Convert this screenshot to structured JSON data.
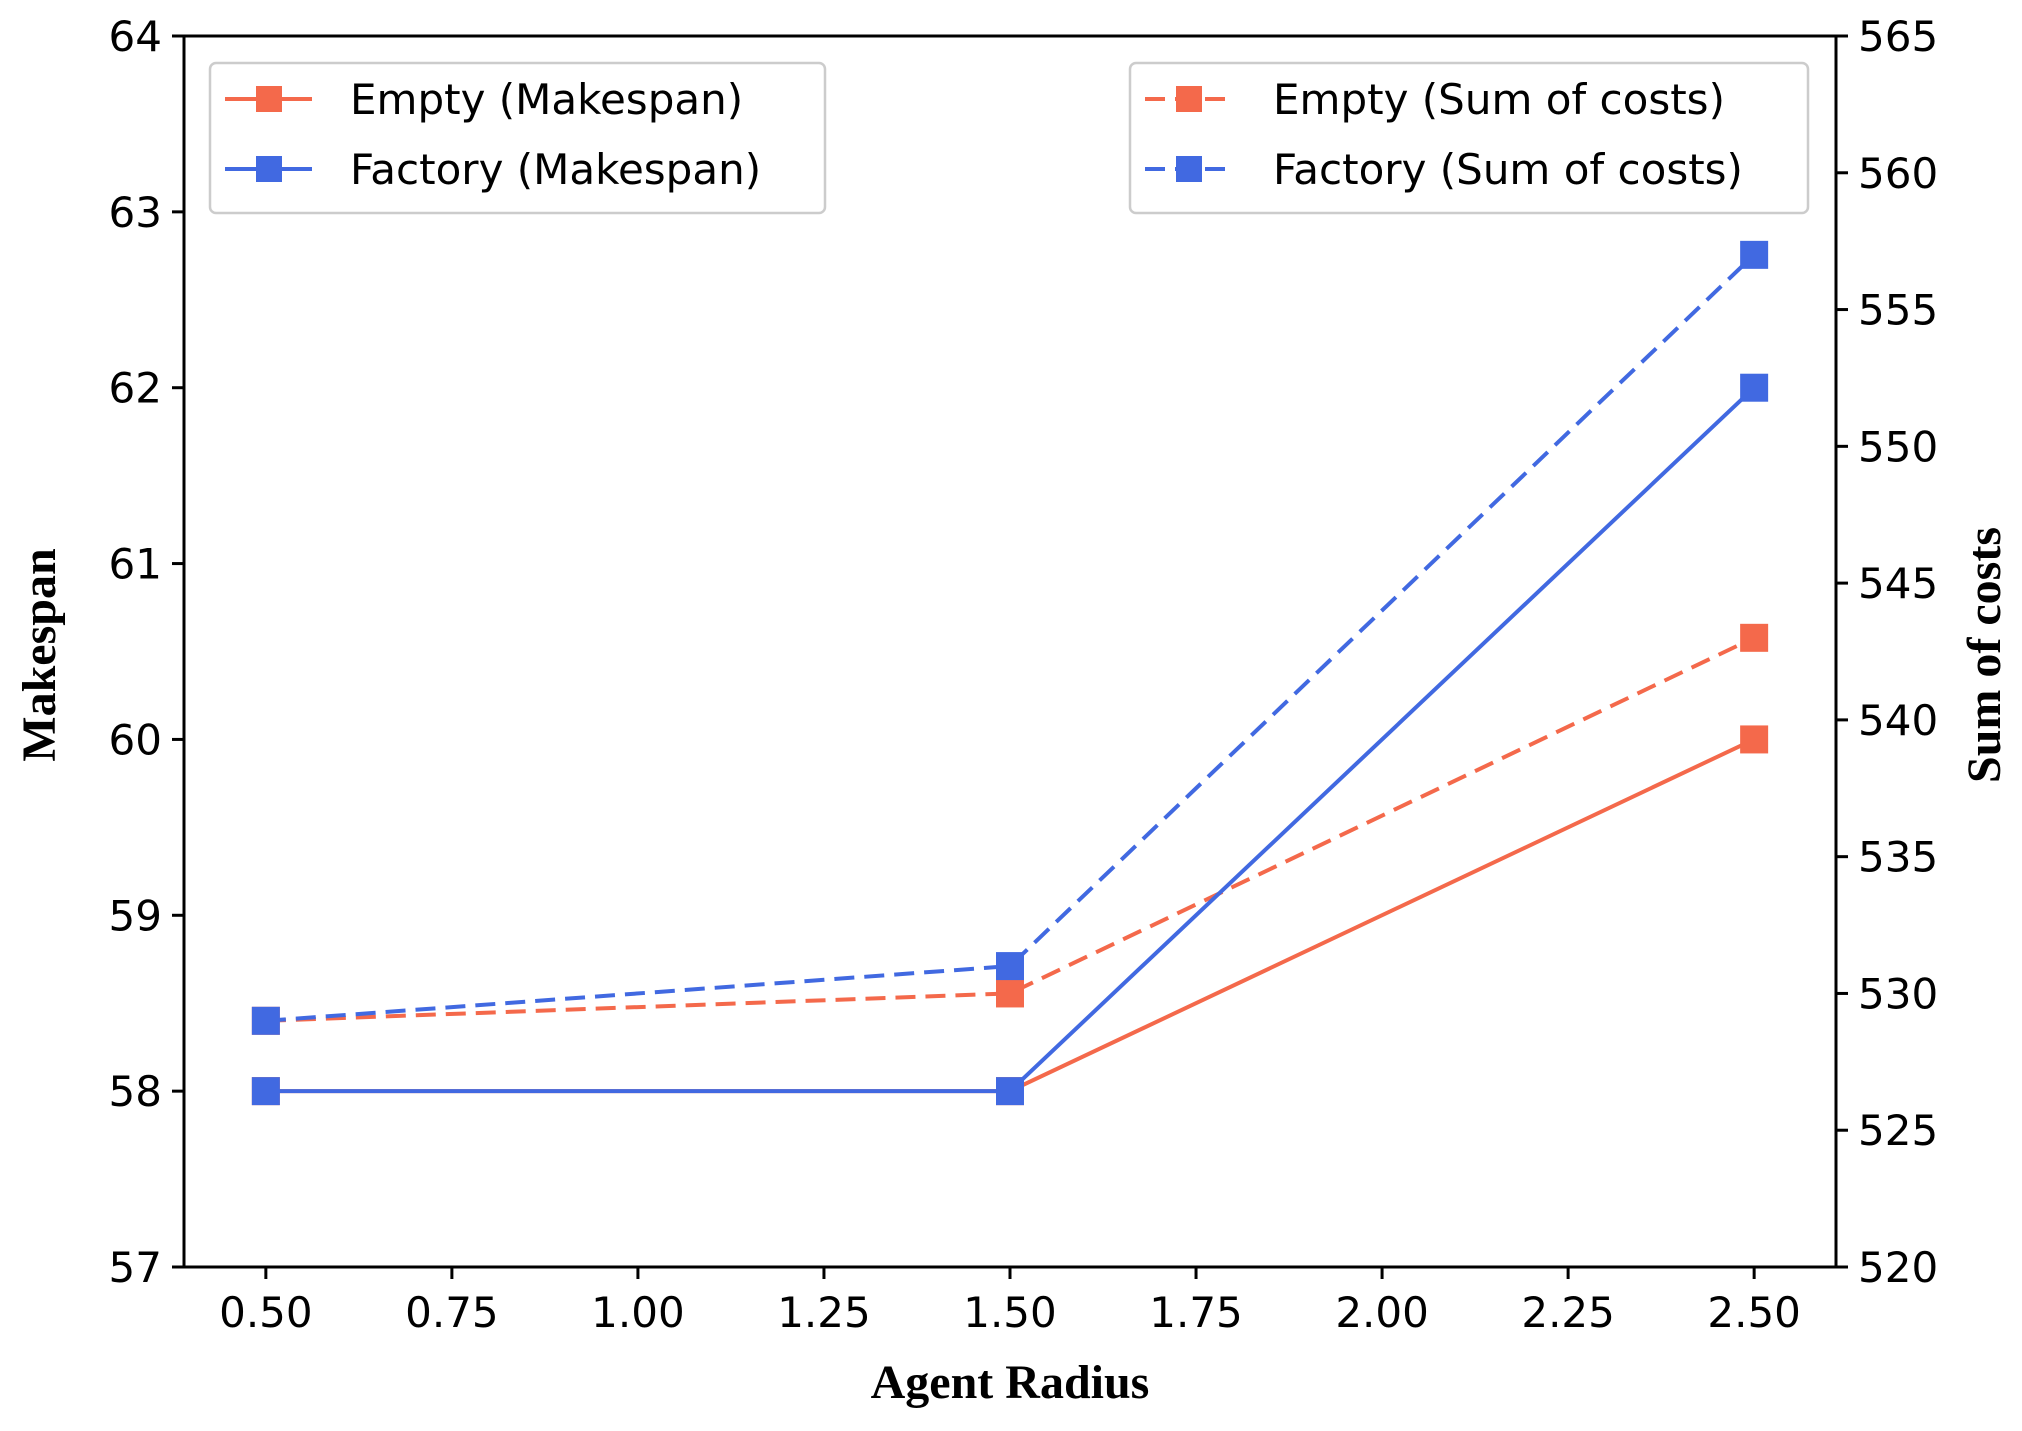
{
  "chart_data": {
    "type": "line",
    "title": "",
    "xlabel": "Agent Radius",
    "ylabel_left": "Makespan",
    "ylabel_right": "Sum of costs",
    "x": [
      0.5,
      1.5,
      2.5
    ],
    "xlim": [
      0.39,
      2.61
    ],
    "ylim_left": [
      57,
      64
    ],
    "ylim_right": [
      520,
      565
    ],
    "x_ticks": [
      0.5,
      0.75,
      1.0,
      1.25,
      1.5,
      1.75,
      2.0,
      2.25,
      2.5
    ],
    "x_tick_labels": [
      "0.50",
      "0.75",
      "1.00",
      "1.25",
      "1.50",
      "1.75",
      "2.00",
      "2.25",
      "2.50"
    ],
    "y_left_ticks": [
      57,
      58,
      59,
      60,
      61,
      62,
      63,
      64
    ],
    "y_left_tick_labels": [
      "57",
      "58",
      "59",
      "60",
      "61",
      "62",
      "63",
      "64"
    ],
    "y_right_ticks": [
      520,
      525,
      530,
      535,
      540,
      545,
      550,
      555,
      560,
      565
    ],
    "y_right_tick_labels": [
      "520",
      "525",
      "530",
      "535",
      "540",
      "545",
      "550",
      "555",
      "560",
      "565"
    ],
    "series": [
      {
        "name": "Empty (Makespan)",
        "axis": "left",
        "style": "solid",
        "color": "#f4694b",
        "values": [
          58,
          58,
          60
        ]
      },
      {
        "name": "Factory (Makespan)",
        "axis": "left",
        "style": "solid",
        "color": "#4169e1",
        "values": [
          58,
          58,
          62
        ]
      },
      {
        "name": "Empty (Sum of costs)",
        "axis": "right",
        "style": "dashed",
        "color": "#f4694b",
        "values": [
          529,
          530,
          543
        ]
      },
      {
        "name": "Factory (Sum of costs)",
        "axis": "right",
        "style": "dashed",
        "color": "#4169e1",
        "values": [
          529,
          531,
          557
        ]
      }
    ],
    "legend_left": {
      "placement": "top-left",
      "entries": [
        "Empty (Makespan)",
        "Factory (Makespan)"
      ]
    },
    "legend_right": {
      "placement": "top-right",
      "entries": [
        "Empty (Sum of costs)",
        "Factory (Sum of costs)"
      ]
    },
    "grid": false
  }
}
